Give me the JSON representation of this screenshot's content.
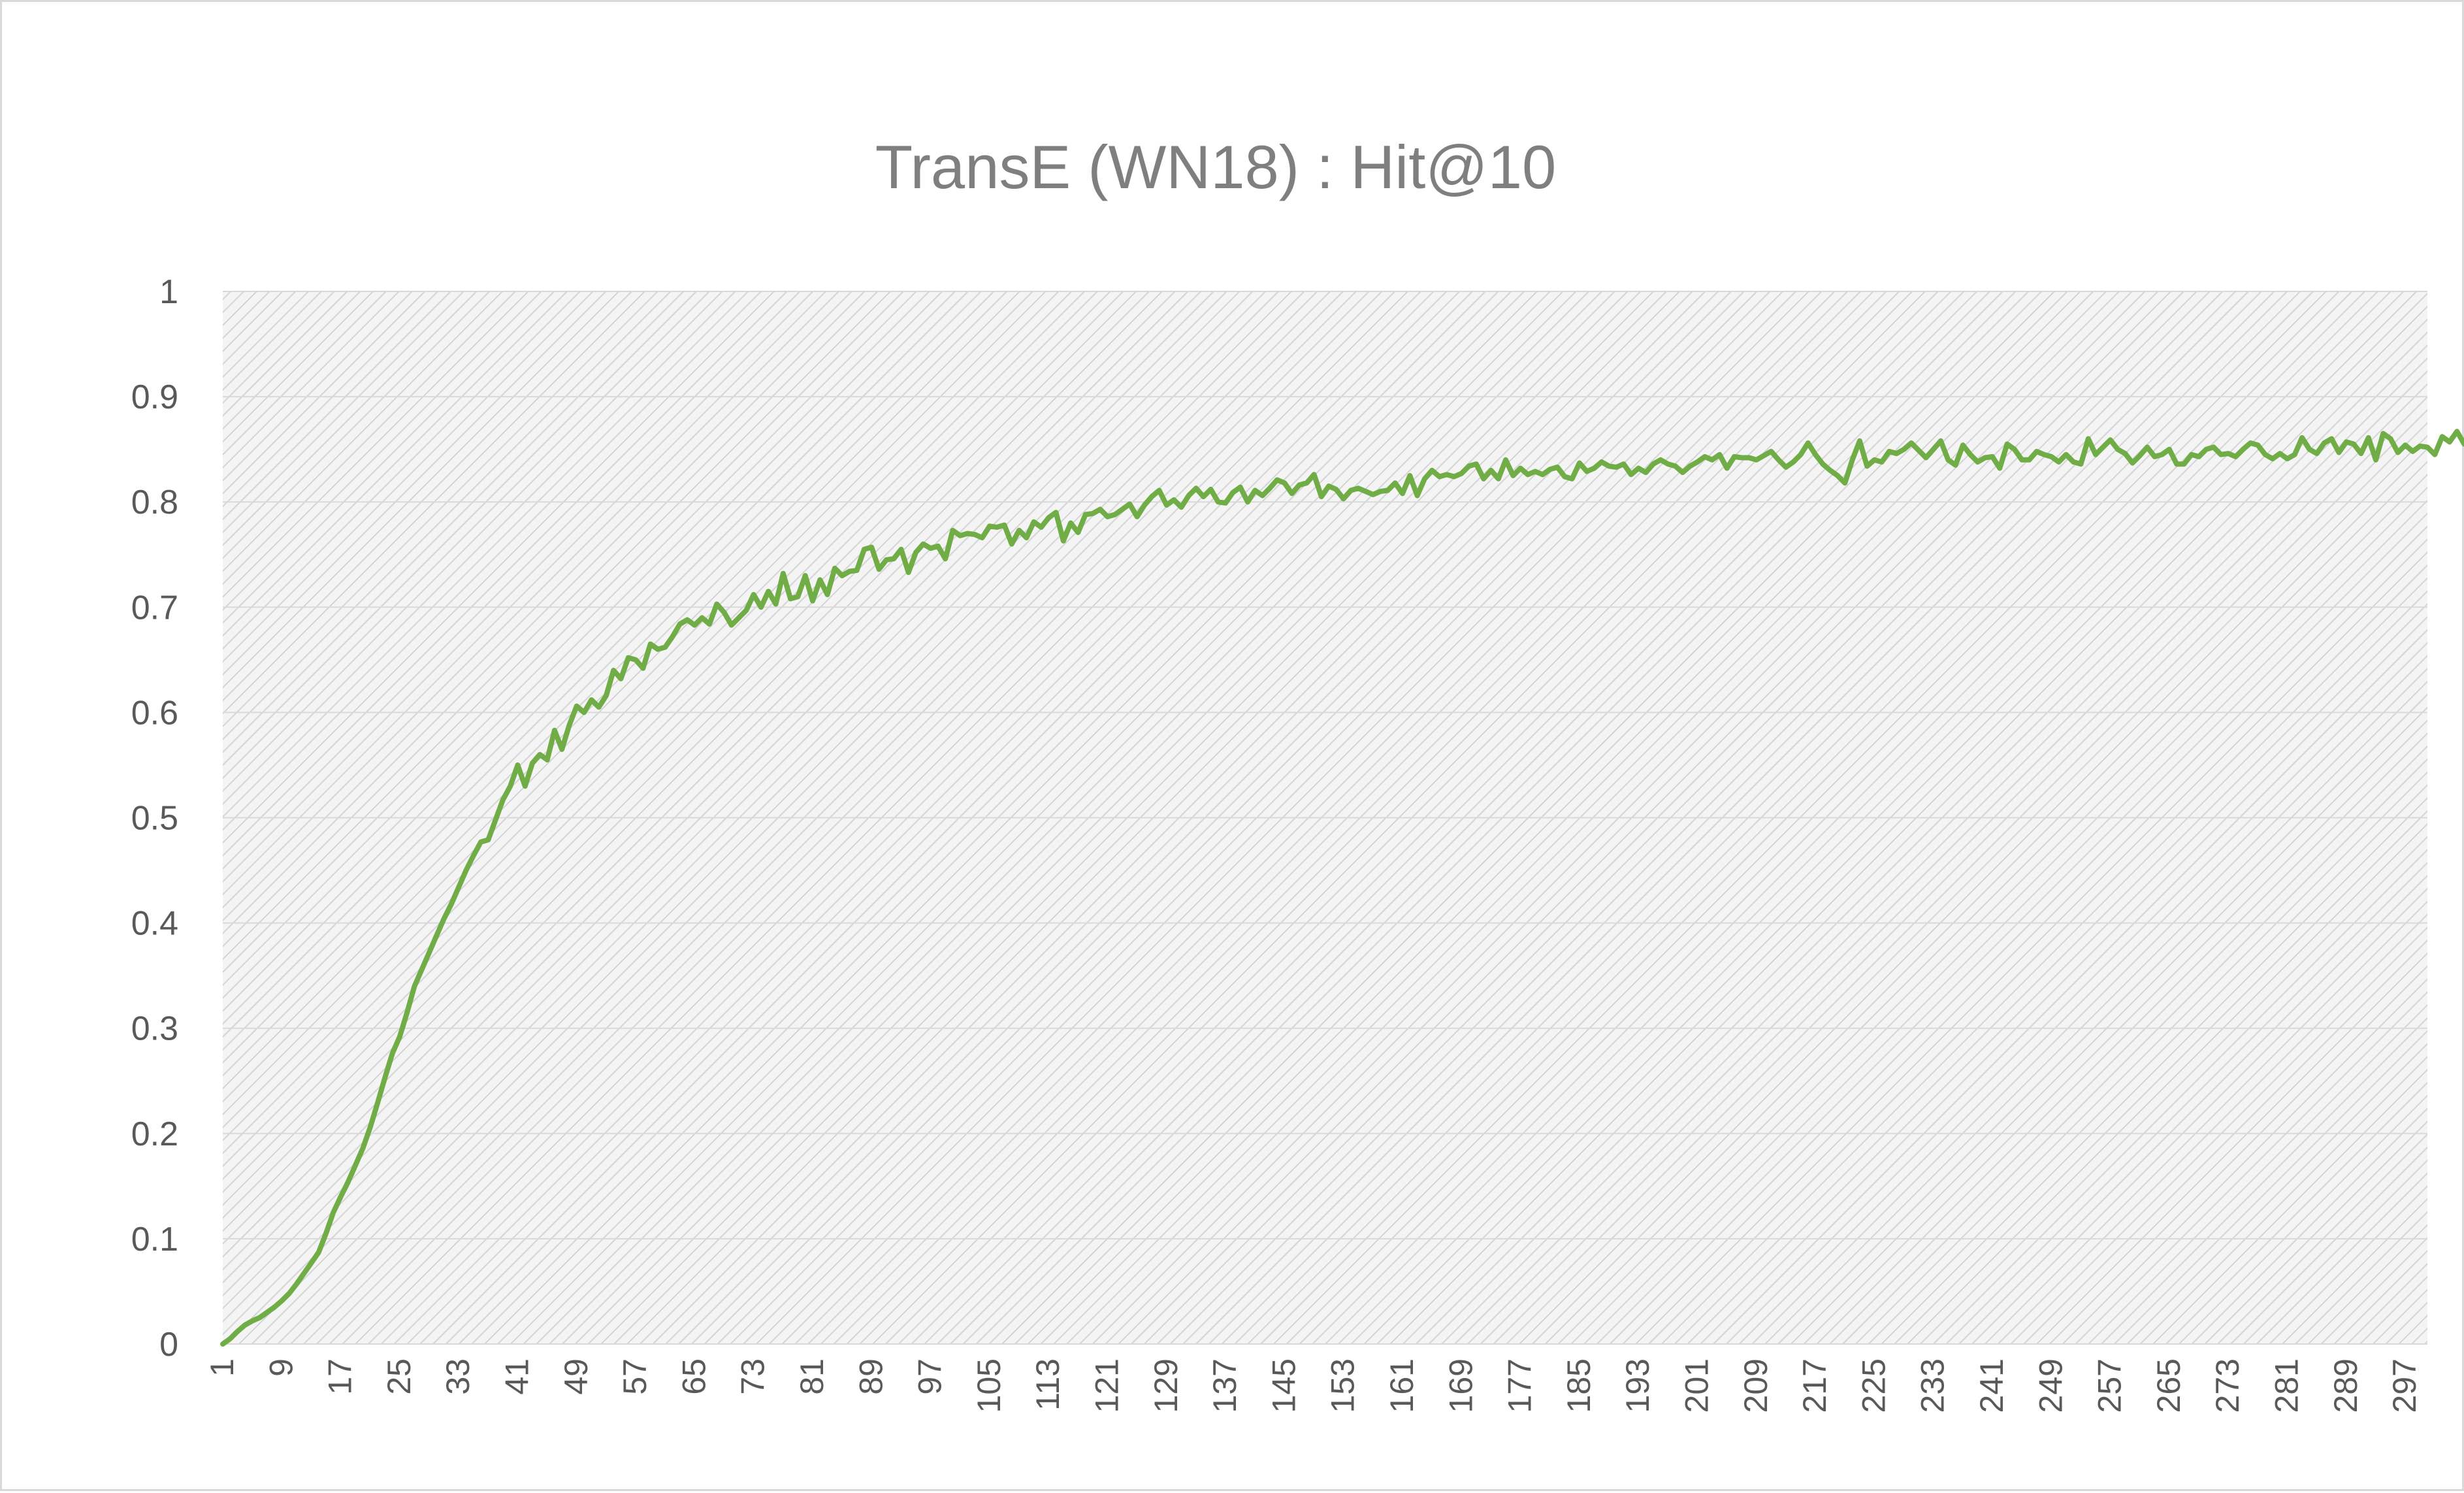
{
  "chart_data": {
    "type": "line",
    "title": "TransE (WN18) : Hit@10",
    "xlabel": "",
    "ylabel": "",
    "ylim": [
      0,
      1
    ],
    "yticks": [
      "0",
      "0.1",
      "0.2",
      "0.3",
      "0.4",
      "0.5",
      "0.6",
      "0.7",
      "0.8",
      "0.9",
      "1"
    ],
    "xlim": [
      1,
      300
    ],
    "xticks": [
      "1",
      "9",
      "17",
      "25",
      "33",
      "41",
      "49",
      "57",
      "65",
      "73",
      "81",
      "89",
      "97",
      "105",
      "113",
      "121",
      "129",
      "137",
      "145",
      "153",
      "161",
      "169",
      "177",
      "185",
      "193",
      "201",
      "209",
      "217",
      "225",
      "233",
      "241",
      "249",
      "257",
      "265",
      "273",
      "281",
      "289",
      "297"
    ],
    "grid": true,
    "plot_area_fill": "hatched-light-gray",
    "line_color": "#70ad47",
    "series": [
      {
        "x_start": 1,
        "x_step": 1,
        "values": [
          0.0,
          0.005,
          0.012,
          0.018,
          0.022,
          0.025,
          0.03,
          0.035,
          0.041,
          0.048,
          0.057,
          0.067,
          0.077,
          0.087,
          0.105,
          0.125,
          0.14,
          0.154,
          0.17,
          0.186,
          0.206,
          0.229,
          0.253,
          0.276,
          0.292,
          0.315,
          0.34,
          0.356,
          0.372,
          0.388,
          0.404,
          0.418,
          0.434,
          0.45,
          0.464,
          0.477,
          0.479,
          0.498,
          0.517,
          0.53,
          0.55,
          0.53,
          0.552,
          0.56,
          0.555,
          0.583,
          0.565,
          0.588,
          0.606,
          0.6,
          0.612,
          0.605,
          0.616,
          0.64,
          0.632,
          0.652,
          0.65,
          0.642,
          0.665,
          0.66,
          0.662,
          0.672,
          0.684,
          0.688,
          0.683,
          0.69,
          0.684,
          0.703,
          0.695,
          0.683,
          0.69,
          0.697,
          0.712,
          0.7,
          0.715,
          0.703,
          0.732,
          0.708,
          0.71,
          0.73,
          0.706,
          0.726,
          0.712,
          0.737,
          0.73,
          0.734,
          0.735,
          0.755,
          0.757,
          0.736,
          0.745,
          0.746,
          0.755,
          0.733,
          0.752,
          0.76,
          0.756,
          0.758,
          0.746,
          0.773,
          0.768,
          0.77,
          0.769,
          0.766,
          0.777,
          0.776,
          0.778,
          0.76,
          0.773,
          0.766,
          0.781,
          0.776,
          0.785,
          0.79,
          0.763,
          0.78,
          0.771,
          0.788,
          0.789,
          0.793,
          0.786,
          0.788,
          0.793,
          0.798,
          0.786,
          0.797,
          0.805,
          0.811,
          0.797,
          0.802,
          0.795,
          0.806,
          0.813,
          0.805,
          0.812,
          0.8,
          0.799,
          0.809,
          0.814,
          0.8,
          0.811,
          0.806,
          0.813,
          0.821,
          0.818,
          0.808,
          0.816,
          0.818,
          0.826,
          0.805,
          0.815,
          0.812,
          0.803,
          0.811,
          0.813,
          0.81,
          0.807,
          0.81,
          0.811,
          0.818,
          0.808,
          0.825,
          0.806,
          0.822,
          0.83,
          0.824,
          0.826,
          0.824,
          0.827,
          0.834,
          0.836,
          0.822,
          0.83,
          0.822,
          0.84,
          0.825,
          0.832,
          0.826,
          0.829,
          0.826,
          0.831,
          0.833,
          0.824,
          0.822,
          0.837,
          0.829,
          0.832,
          0.838,
          0.834,
          0.833,
          0.836,
          0.826,
          0.832,
          0.828,
          0.836,
          0.84,
          0.836,
          0.834,
          0.828,
          0.834,
          0.838,
          0.843,
          0.84,
          0.845,
          0.832,
          0.843,
          0.842,
          0.842,
          0.84,
          0.844,
          0.848,
          0.84,
          0.833,
          0.838,
          0.845,
          0.856,
          0.845,
          0.836,
          0.83,
          0.825,
          0.818,
          0.84,
          0.858,
          0.834,
          0.84,
          0.838,
          0.848,
          0.846,
          0.85,
          0.856,
          0.849,
          0.842,
          0.85,
          0.858,
          0.84,
          0.835,
          0.854,
          0.845,
          0.838,
          0.842,
          0.843,
          0.832,
          0.855,
          0.85,
          0.84,
          0.84,
          0.848,
          0.845,
          0.843,
          0.838,
          0.845,
          0.838,
          0.836,
          0.86,
          0.845,
          0.852,
          0.859,
          0.85,
          0.846,
          0.837,
          0.844,
          0.852,
          0.843,
          0.845,
          0.85,
          0.836,
          0.836,
          0.845,
          0.843,
          0.85,
          0.852,
          0.845,
          0.846,
          0.843,
          0.85,
          0.856,
          0.854,
          0.845,
          0.841,
          0.846,
          0.841,
          0.845,
          0.861,
          0.85,
          0.846,
          0.856,
          0.86,
          0.847,
          0.857,
          0.855,
          0.846,
          0.861,
          0.84,
          0.865,
          0.86,
          0.847,
          0.854,
          0.848,
          0.853,
          0.852,
          0.845,
          0.862,
          0.857,
          0.867,
          0.855,
          0.853,
          0.845
        ]
      }
    ]
  }
}
